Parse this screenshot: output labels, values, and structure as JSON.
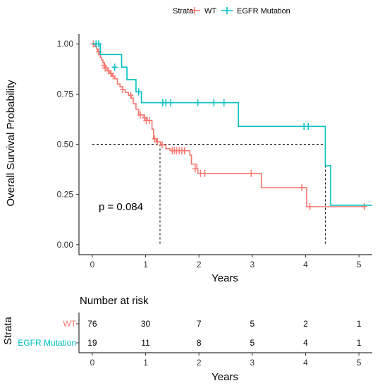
{
  "chart_data": {
    "type": "line",
    "subtype": "kaplan-meier",
    "ylabel": "Overall Survival Probability",
    "xlabel": "Years",
    "xlim": [
      -0.25,
      5.25
    ],
    "ylim": [
      -0.05,
      1.05
    ],
    "x_ticks": [
      "0",
      "1",
      "2",
      "3",
      "4",
      "5"
    ],
    "y_ticks": [
      "0.00",
      "0.25",
      "0.50",
      "0.75",
      "1.00"
    ],
    "grid": false,
    "legend": {
      "position": "top",
      "title": "Strata",
      "entries": [
        "WT",
        "EGFR Mutation"
      ]
    },
    "pvalue": "p = 0.084",
    "median_line_y": 0.5,
    "series": [
      {
        "name": "WT",
        "color": "#F8766D",
        "steps": [
          [
            0,
            1.0
          ],
          [
            0.05,
            0.987
          ],
          [
            0.08,
            0.974
          ],
          [
            0.1,
            0.96
          ],
          [
            0.13,
            0.946
          ],
          [
            0.15,
            0.933
          ],
          [
            0.17,
            0.92
          ],
          [
            0.2,
            0.906
          ],
          [
            0.23,
            0.893
          ],
          [
            0.26,
            0.88
          ],
          [
            0.28,
            0.866
          ],
          [
            0.33,
            0.853
          ],
          [
            0.37,
            0.84
          ],
          [
            0.42,
            0.826
          ],
          [
            0.47,
            0.8
          ],
          [
            0.52,
            0.786
          ],
          [
            0.57,
            0.772
          ],
          [
            0.62,
            0.758
          ],
          [
            0.68,
            0.744
          ],
          [
            0.73,
            0.73
          ],
          [
            0.77,
            0.702
          ],
          [
            0.82,
            0.674
          ],
          [
            0.87,
            0.646
          ],
          [
            0.97,
            0.632
          ],
          [
            1.03,
            0.618
          ],
          [
            1.12,
            0.575
          ],
          [
            1.15,
            0.527
          ],
          [
            1.2,
            0.512
          ],
          [
            1.28,
            0.497
          ],
          [
            1.38,
            0.478
          ],
          [
            1.46,
            0.468
          ],
          [
            1.83,
            0.446
          ],
          [
            1.86,
            0.401
          ],
          [
            1.96,
            0.378
          ],
          [
            1.98,
            0.355
          ],
          [
            3.17,
            0.284
          ],
          [
            4.02,
            0.189
          ],
          [
            5.1,
            0.189
          ]
        ],
        "censored": [
          [
            0.02,
            1.0
          ],
          [
            0.12,
            0.96
          ],
          [
            0.22,
            0.893
          ],
          [
            0.24,
            0.88
          ],
          [
            0.3,
            0.866
          ],
          [
            0.35,
            0.853
          ],
          [
            0.39,
            0.84
          ],
          [
            0.57,
            0.772
          ],
          [
            0.72,
            0.744
          ],
          [
            0.9,
            0.646
          ],
          [
            0.98,
            0.632
          ],
          [
            1.01,
            0.618
          ],
          [
            1.07,
            0.618
          ],
          [
            1.17,
            0.527
          ],
          [
            1.22,
            0.512
          ],
          [
            1.31,
            0.497
          ],
          [
            1.5,
            0.468
          ],
          [
            1.54,
            0.468
          ],
          [
            1.58,
            0.468
          ],
          [
            1.63,
            0.468
          ],
          [
            1.68,
            0.468
          ],
          [
            1.73,
            0.468
          ],
          [
            1.93,
            0.378
          ],
          [
            2.03,
            0.355
          ],
          [
            2.11,
            0.355
          ],
          [
            2.98,
            0.355
          ],
          [
            3.93,
            0.284
          ],
          [
            4.08,
            0.189
          ],
          [
            5.1,
            0.189
          ]
        ]
      },
      {
        "name": "EGFR Mutation",
        "color": "#00BFC4",
        "steps": [
          [
            0,
            1.0
          ],
          [
            0.15,
            0.947
          ],
          [
            0.55,
            0.884
          ],
          [
            0.65,
            0.822
          ],
          [
            0.82,
            0.761
          ],
          [
            0.92,
            0.707
          ],
          [
            2.74,
            0.589
          ],
          [
            4.37,
            0.393
          ],
          [
            4.47,
            0.196
          ],
          [
            5.25,
            0.196
          ]
        ],
        "censored": [
          [
            0.07,
            1.0
          ],
          [
            0.12,
            1.0
          ],
          [
            0.42,
            0.884
          ],
          [
            0.87,
            0.761
          ],
          [
            1.32,
            0.707
          ],
          [
            1.38,
            0.707
          ],
          [
            1.47,
            0.707
          ],
          [
            1.98,
            0.707
          ],
          [
            2.28,
            0.707
          ],
          [
            2.47,
            0.707
          ],
          [
            3.97,
            0.589
          ],
          [
            4.05,
            0.589
          ]
        ]
      }
    ],
    "median_markers": [
      1.27,
      4.37
    ]
  },
  "risk_table": {
    "title": "Number at risk",
    "strata_label": "Strata",
    "x_ticks": [
      "0",
      "1",
      "2",
      "3",
      "4",
      "5"
    ],
    "xlabel": "Years",
    "rows": [
      {
        "name": "WT",
        "color": "#F8766D",
        "values": [
          "76",
          "30",
          "7",
          "5",
          "2",
          "1"
        ]
      },
      {
        "name": "EGFR Mutation",
        "color": "#00BFC4",
        "values": [
          "19",
          "11",
          "8",
          "5",
          "4",
          "1"
        ]
      }
    ]
  }
}
